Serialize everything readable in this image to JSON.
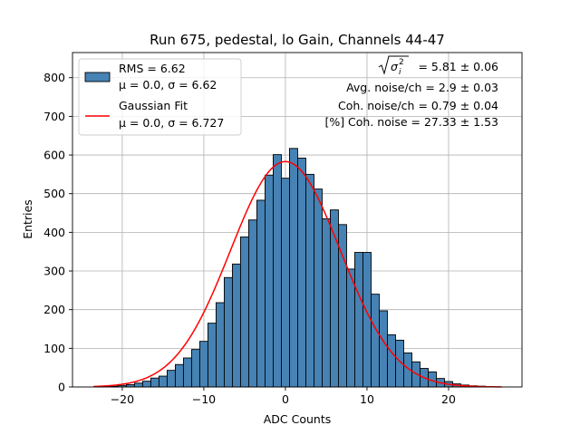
{
  "chart_data": {
    "type": "bar",
    "title": "Run 675, pedestal, lo Gain, Channels 44-47",
    "xlabel": "ADC Counts",
    "ylabel": "Entries",
    "xlim": [
      -26.1,
      29.0
    ],
    "ylim": [
      0,
      865
    ],
    "xticks": [
      -20,
      -10,
      0,
      10,
      20
    ],
    "xtick_labels": [
      "−20",
      "−10",
      "0",
      "10",
      "20"
    ],
    "yticks": [
      0,
      100,
      200,
      300,
      400,
      500,
      600,
      700,
      800
    ],
    "grid": true,
    "legend_position": "upper-left",
    "bin_edges": [
      -23.5,
      -22.5,
      -21.5,
      -20.5,
      -19.5,
      -18.5,
      -17.5,
      -16.5,
      -15.5,
      -14.5,
      -13.5,
      -12.5,
      -11.5,
      -10.5,
      -9.5,
      -8.5,
      -7.5,
      -6.5,
      -5.5,
      -4.5,
      -3.5,
      -2.5,
      -1.5,
      -0.5,
      0.5,
      1.5,
      2.5,
      3.5,
      4.5,
      5.5,
      6.5,
      7.5,
      8.5,
      9.5,
      10.5,
      11.5,
      12.5,
      13.5,
      14.5,
      15.5,
      16.5,
      17.5,
      18.5,
      19.5,
      20.5,
      21.5,
      22.5,
      23.5,
      24.5,
      25.5,
      26.5
    ],
    "series": [
      {
        "name": "RMS = 6.62\nμ = 0.0, σ = 6.62",
        "kind": "histogram",
        "color": "#4682b4",
        "edgecolor": "#000000",
        "values": [
          1,
          1,
          2,
          4,
          6,
          10,
          15,
          23,
          28,
          43,
          58,
          75,
          97,
          118,
          165,
          218,
          283,
          318,
          388,
          432,
          483,
          548,
          601,
          540,
          617,
          592,
          550,
          512,
          435,
          458,
          420,
          305,
          348,
          348,
          240,
          197,
          135,
          121,
          88,
          65,
          48,
          39,
          22,
          14,
          8,
          5,
          3,
          2,
          1,
          0
        ]
      },
      {
        "name": "Gaussian Fit\nμ = 0.0, σ = 6.727",
        "kind": "line",
        "color": "#ff0000",
        "mu": 0.0,
        "sigma": 6.727,
        "amplitude": 583,
        "x_range": [
          -23.5,
          26.5
        ]
      }
    ],
    "annotations": [
      "= 5.81 ± 0.06",
      "Avg. noise/ch = 2.9 ± 0.03",
      "Coh. noise/ch = 0.79 ± 0.04",
      "[%] Coh. noise = 27.33 ± 1.53"
    ],
    "annotation_formula": {
      "base": "σ",
      "subscript": "i",
      "superscript": "2"
    }
  },
  "legend": {
    "hist_line1": "RMS = 6.62",
    "hist_line2": "μ = 0.0, σ = 6.62",
    "fit_line1": "Gaussian Fit",
    "fit_line2": "μ = 0.0, σ = 6.727"
  }
}
